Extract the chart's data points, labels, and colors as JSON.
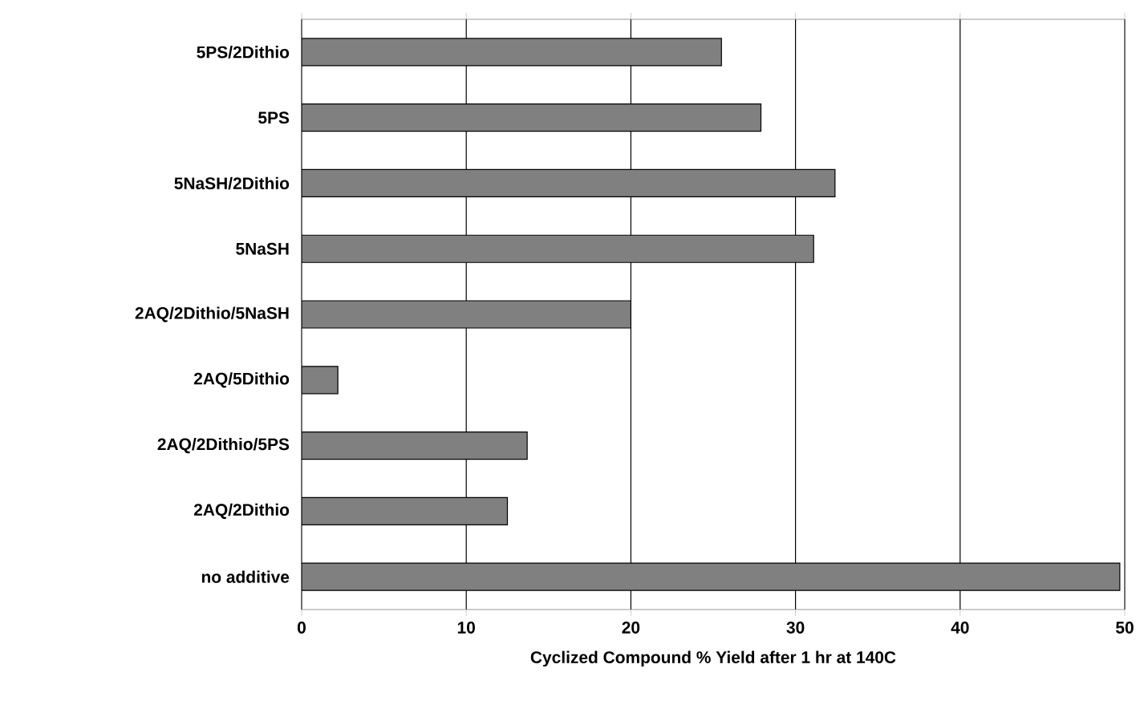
{
  "chart_data": {
    "type": "bar",
    "orientation": "horizontal",
    "xlabel": "Cyclized Compound % Yield after 1 hr at 140C",
    "categories": [
      "5PS/2Dithio",
      "5PS",
      "5NaSH/2Dithio",
      "5NaSH",
      "2AQ/2Dithio/5NaSH",
      "2AQ/5Dithio",
      "2AQ/2Dithio/5PS",
      "2AQ/2Dithio",
      "no additive"
    ],
    "values": [
      25.5,
      27.9,
      32.4,
      31.1,
      20.0,
      2.2,
      13.7,
      12.5,
      49.7
    ],
    "color": "#808080",
    "xlim": [
      0,
      50
    ],
    "xticks": [
      0,
      10,
      20,
      30,
      40,
      50
    ],
    "grid": "x"
  }
}
